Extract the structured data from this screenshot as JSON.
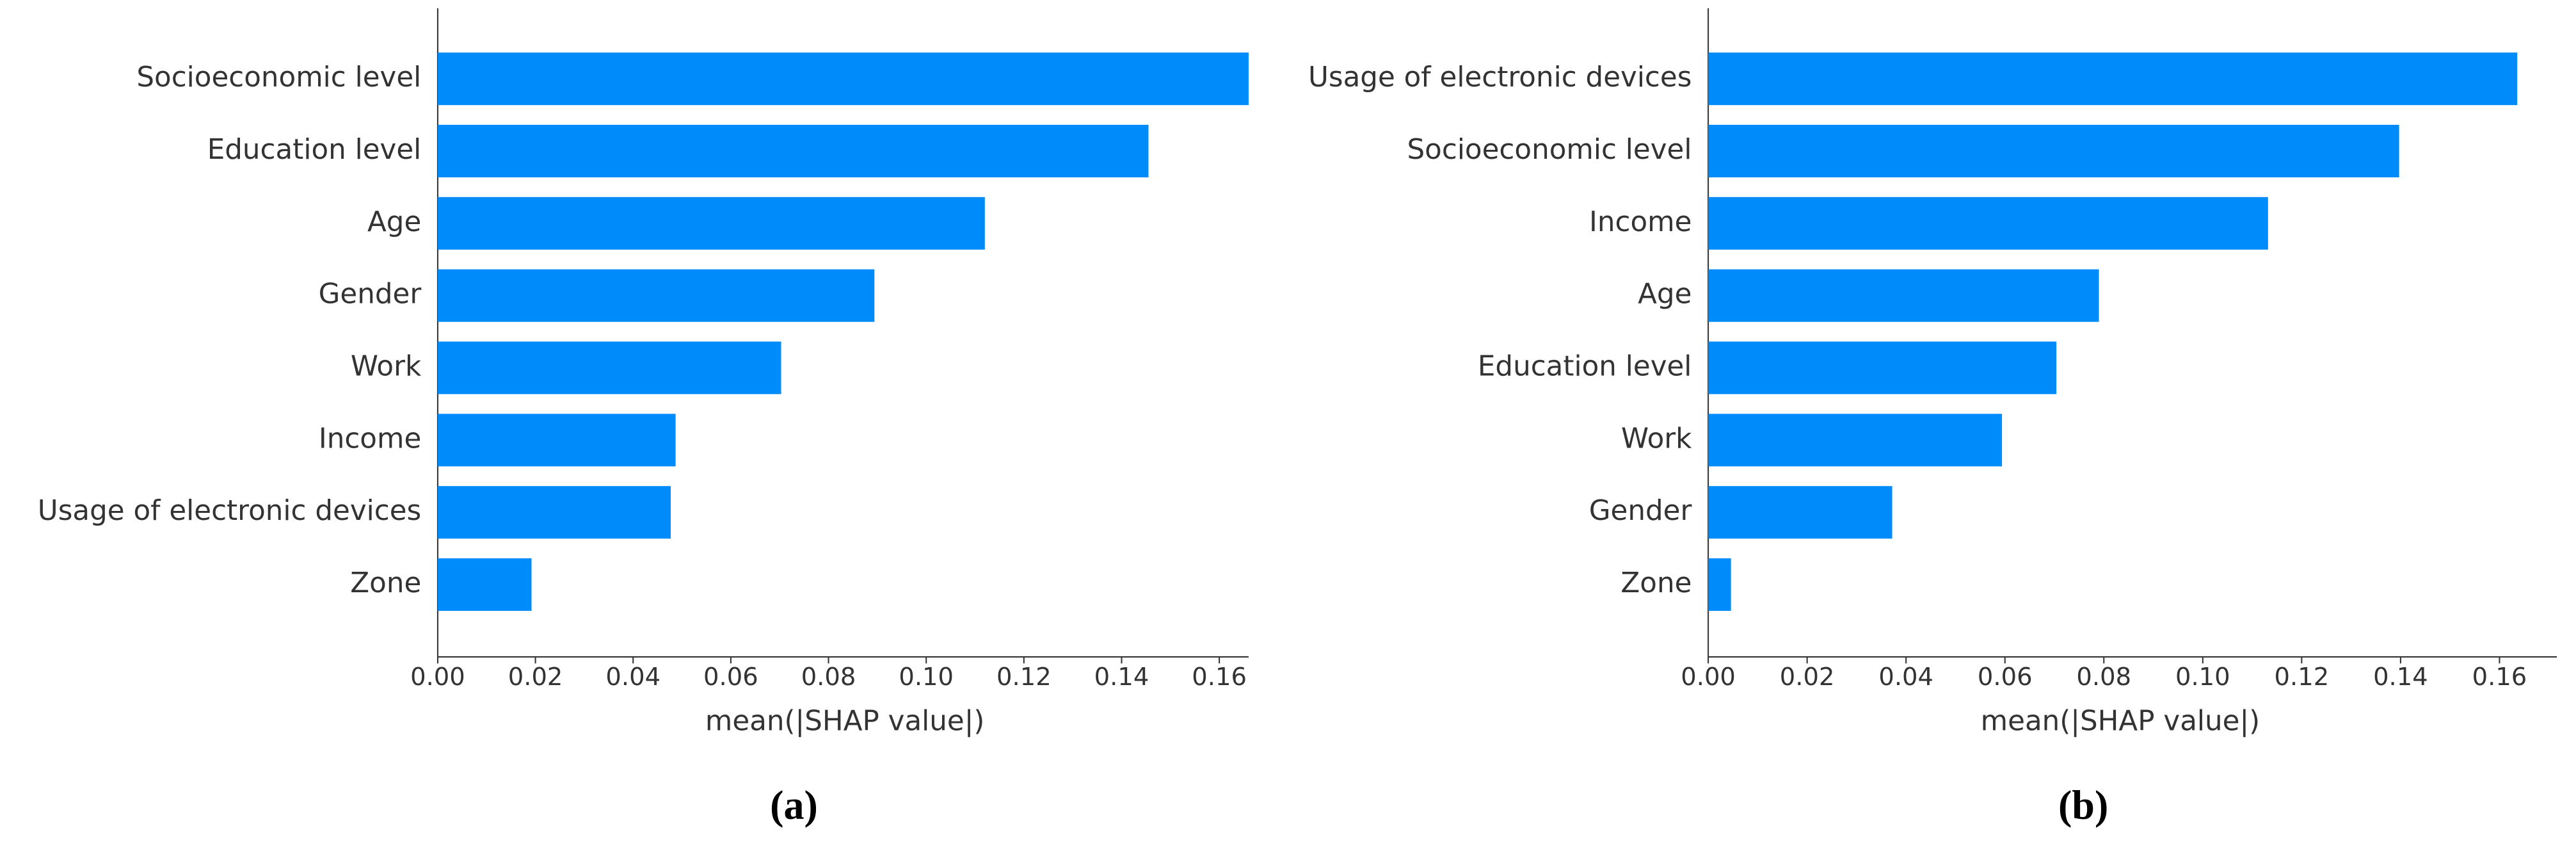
{
  "chart_data": [
    {
      "type": "bar",
      "orientation": "horizontal",
      "categories": [
        "Socioeconomic level",
        "Education level",
        "Age",
        "Gender",
        "Work",
        "Income",
        "Usage of electronic devices",
        "Zone"
      ],
      "values": [
        0.166,
        0.1455,
        0.112,
        0.0894,
        0.0703,
        0.0487,
        0.0477,
        0.0192
      ],
      "color": "#008bfb",
      "xlim": [
        0,
        0.166
      ],
      "xticks": [
        {
          "value": 0,
          "label": "0.00"
        },
        {
          "value": 0.02,
          "label": "0.02"
        },
        {
          "value": 0.04,
          "label": "0.04"
        },
        {
          "value": 0.06,
          "label": "0.06"
        },
        {
          "value": 0.08,
          "label": "0.08"
        },
        {
          "value": 0.1,
          "label": "0.10"
        },
        {
          "value": 0.12,
          "label": "0.12"
        },
        {
          "value": 0.14,
          "label": "0.14"
        },
        {
          "value": 0.16,
          "label": "0.16"
        }
      ],
      "xlabel": "mean(|SHAP value|)",
      "caption": "(a)"
    },
    {
      "type": "bar",
      "orientation": "horizontal",
      "categories": [
        "Usage of electronic devices",
        "Socioeconomic level",
        "Income",
        "Age",
        "Education level",
        "Work",
        "Gender",
        "Zone"
      ],
      "values": [
        0.1636,
        0.1397,
        0.1132,
        0.079,
        0.0704,
        0.0594,
        0.0372,
        0.0046
      ],
      "color": "#008bfb",
      "xlim": [
        0,
        0.1716
      ],
      "xticks": [
        {
          "value": 0,
          "label": "0.00"
        },
        {
          "value": 0.02,
          "label": "0.02"
        },
        {
          "value": 0.04,
          "label": "0.04"
        },
        {
          "value": 0.06,
          "label": "0.06"
        },
        {
          "value": 0.08,
          "label": "0.08"
        },
        {
          "value": 0.1,
          "label": "0.10"
        },
        {
          "value": 0.12,
          "label": "0.12"
        },
        {
          "value": 0.14,
          "label": "0.14"
        },
        {
          "value": 0.16,
          "label": "0.16"
        }
      ],
      "xlabel": "mean(|SHAP value|)",
      "caption": "(b)"
    }
  ]
}
